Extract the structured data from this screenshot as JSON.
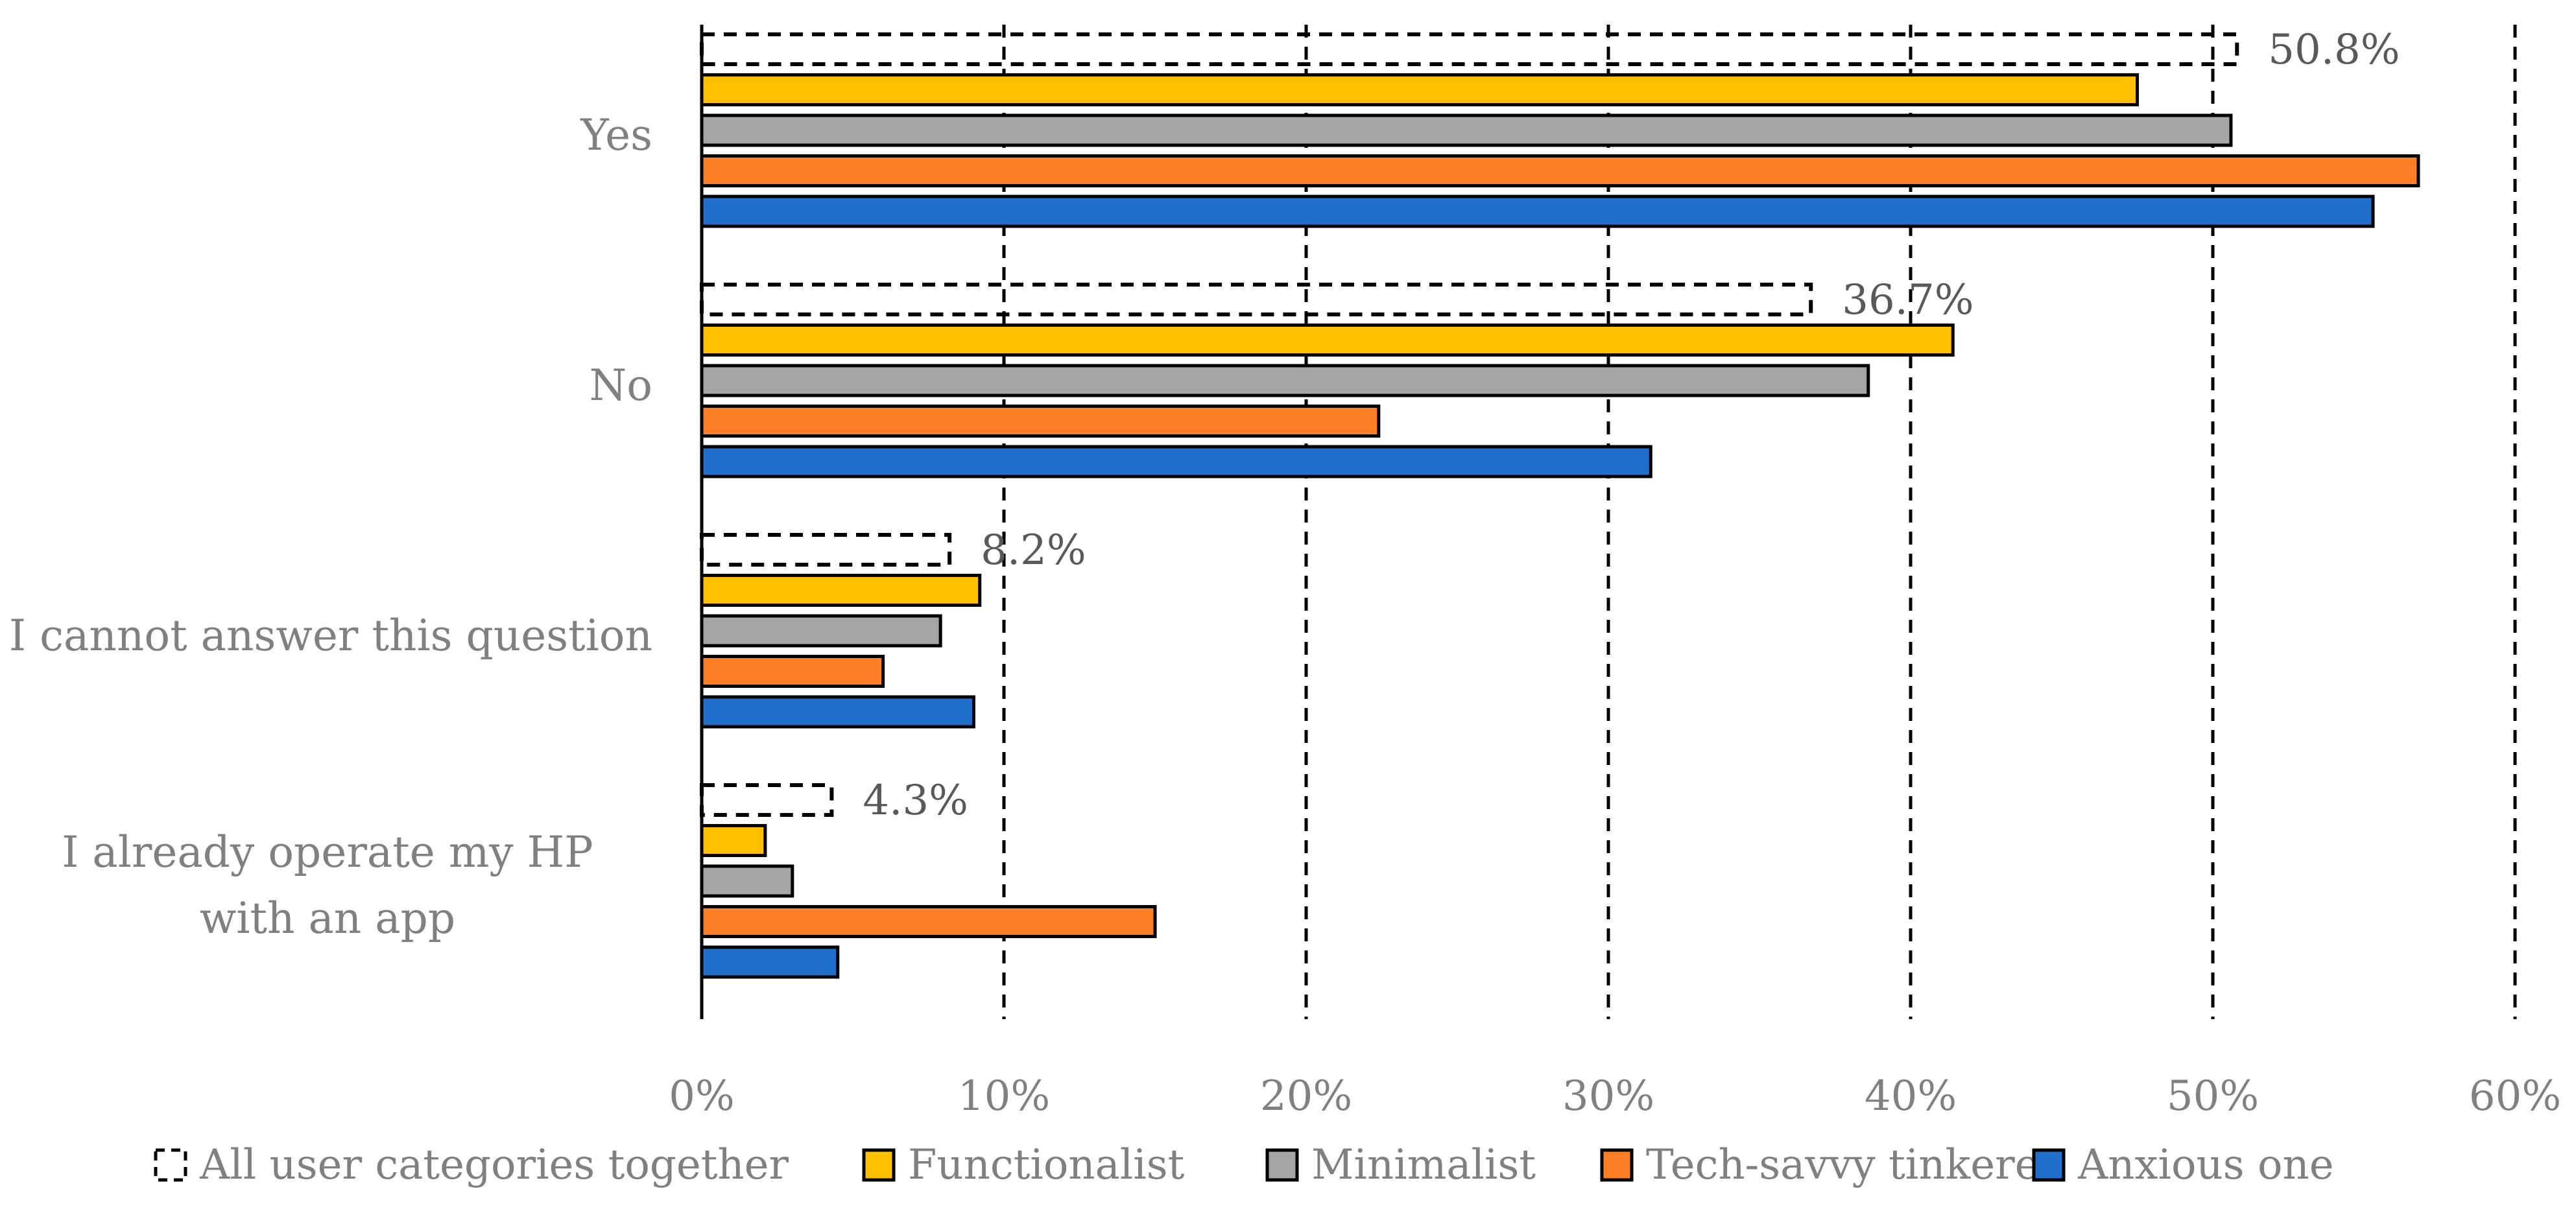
{
  "chart_data": {
    "type": "bar",
    "orientation": "horizontal",
    "categories": [
      "Yes",
      "No",
      "I cannot answer this question",
      "I already operate my HP with an app"
    ],
    "series": [
      {
        "name": "All user categories together",
        "values": [
          50.8,
          36.7,
          8.2,
          4.3
        ],
        "style": "dashed-outline"
      },
      {
        "name": "Functionalist",
        "values": [
          47.5,
          41.4,
          9.2,
          2.1
        ],
        "color": "#FFC000"
      },
      {
        "name": "Minimalist",
        "values": [
          50.6,
          38.6,
          7.9,
          3.0
        ],
        "color": "#A5A5A5"
      },
      {
        "name": "Tech-savvy tinkerer",
        "values": [
          56.8,
          22.4,
          6.0,
          15.0
        ],
        "color": "#FF7F27"
      },
      {
        "name": "Anxious one",
        "values": [
          55.3,
          31.4,
          9.0,
          4.5
        ],
        "color": "#1F6FCB"
      }
    ],
    "data_labels": [
      "50.8%",
      "36.7%",
      "8.2%",
      "4.3%"
    ],
    "x_ticks": [
      "0%",
      "10%",
      "20%",
      "30%",
      "40%",
      "50%",
      "60%"
    ],
    "xlim": [
      0,
      60
    ],
    "grid": "vertical-dashed",
    "legend_position": "bottom",
    "title": "",
    "xlabel": "",
    "ylabel": ""
  },
  "colors": {
    "axis_text": "#808080",
    "label_text": "#595959",
    "grid": "#000000"
  }
}
